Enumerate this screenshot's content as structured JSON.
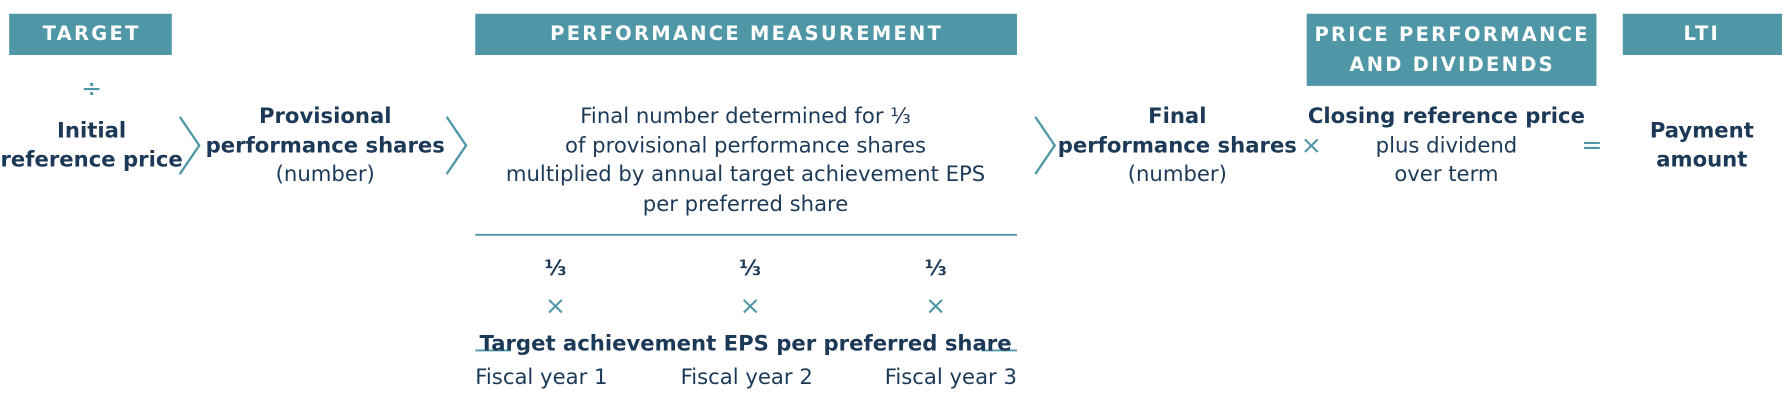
{
  "headers": {
    "target": "TARGET",
    "performance": "PERFORMANCE MEASUREMENT",
    "price": [
      "PRICE PERFORMANCE",
      "AND DIVIDENDS"
    ],
    "lti": "LTI"
  },
  "initial": {
    "operator": "÷",
    "lines": [
      "Initial",
      "reference price"
    ]
  },
  "provisional": {
    "lines": [
      "Provisional",
      "performance shares"
    ],
    "note": "(number)"
  },
  "determination": [
    "Final number determined for ⅓",
    "of provisional performance shares",
    "multiplied by annual target achievement EPS",
    "per preferred share"
  ],
  "tranches": [
    {
      "fraction": "⅓",
      "operator": "×",
      "year": "Fiscal year 1"
    },
    {
      "fraction": "⅓",
      "operator": "×",
      "year": "Fiscal year 2"
    },
    {
      "fraction": "⅓",
      "operator": "×",
      "year": "Fiscal year 3"
    }
  ],
  "target_achievement": "Target achievement EPS per preferred share",
  "final": {
    "lines": [
      "Final",
      "performance shares"
    ],
    "note": "(number)"
  },
  "multiply": "×",
  "closing": {
    "title": "Closing reference price",
    "lines": [
      "plus dividend",
      "over term"
    ]
  },
  "equals": "=",
  "payment": {
    "lines": [
      "Payment",
      "amount"
    ]
  }
}
